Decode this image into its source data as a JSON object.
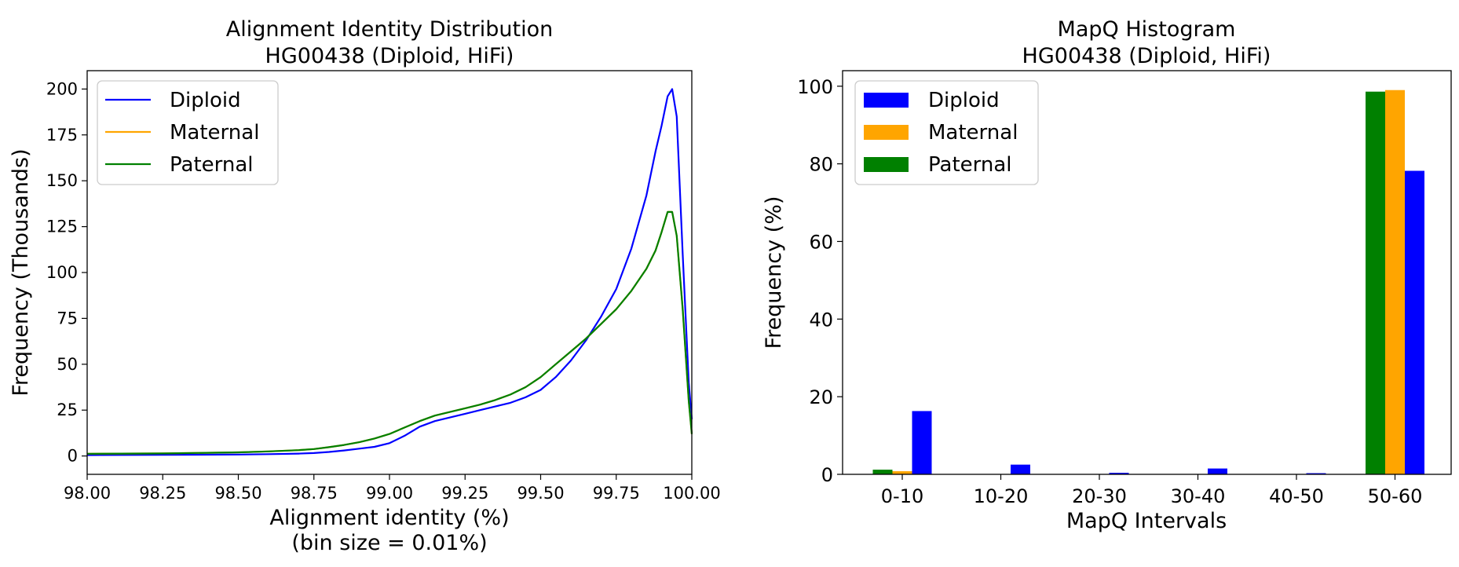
{
  "chart_data": [
    {
      "type": "line",
      "title": "Alignment Identity Distribution",
      "subtitle": "HG00438 (Diploid, HiFi)",
      "xlabel": "Alignment identity (%)",
      "xlabel_note": "(bin size = 0.01%)",
      "ylabel": "Frequency (Thousands)",
      "xlim": [
        98.0,
        100.0
      ],
      "ylim": [
        -10,
        210
      ],
      "xticks": [
        "98.00",
        "98.25",
        "98.50",
        "98.75",
        "99.00",
        "99.25",
        "99.50",
        "99.75",
        "100.00"
      ],
      "yticks": [
        "0",
        "25",
        "50",
        "75",
        "100",
        "125",
        "150",
        "175",
        "200"
      ],
      "grid": false,
      "legend_position": "top-left",
      "series": [
        {
          "name": "Diploid",
          "color": "#0000ff",
          "points": [
            [
              98.0,
              0.5
            ],
            [
              98.25,
              0.6
            ],
            [
              98.5,
              0.8
            ],
            [
              98.6,
              1.0
            ],
            [
              98.7,
              1.3
            ],
            [
              98.75,
              1.6
            ],
            [
              98.8,
              2.2
            ],
            [
              98.85,
              3.0
            ],
            [
              98.9,
              4.0
            ],
            [
              98.95,
              5.0
            ],
            [
              99.0,
              7.0
            ],
            [
              99.05,
              11.0
            ],
            [
              99.1,
              16.0
            ],
            [
              99.15,
              19.0
            ],
            [
              99.2,
              21.0
            ],
            [
              99.25,
              23.0
            ],
            [
              99.3,
              25.0
            ],
            [
              99.35,
              27.0
            ],
            [
              99.4,
              29.0
            ],
            [
              99.45,
              32.0
            ],
            [
              99.5,
              36.0
            ],
            [
              99.55,
              43.0
            ],
            [
              99.6,
              52.0
            ],
            [
              99.65,
              63.0
            ],
            [
              99.7,
              76.0
            ],
            [
              99.75,
              91.0
            ],
            [
              99.8,
              113.0
            ],
            [
              99.85,
              142.0
            ],
            [
              99.88,
              166.0
            ],
            [
              99.9,
              180.0
            ],
            [
              99.92,
              196.0
            ],
            [
              99.935,
              200.0
            ],
            [
              99.95,
              185.0
            ],
            [
              99.97,
              110.0
            ],
            [
              99.99,
              40.0
            ],
            [
              100.0,
              20.0
            ]
          ]
        },
        {
          "name": "Maternal",
          "color": "#ffa500",
          "points": [
            [
              98.0,
              1.2
            ],
            [
              98.25,
              1.4
            ],
            [
              98.5,
              2.0
            ],
            [
              98.6,
              2.5
            ],
            [
              98.7,
              3.2
            ],
            [
              98.75,
              3.8
            ],
            [
              98.8,
              4.8
            ],
            [
              98.85,
              6.0
            ],
            [
              98.9,
              7.5
            ],
            [
              98.95,
              9.5
            ],
            [
              99.0,
              12.0
            ],
            [
              99.05,
              15.5
            ],
            [
              99.1,
              19.0
            ],
            [
              99.15,
              22.0
            ],
            [
              99.2,
              24.0
            ],
            [
              99.25,
              26.0
            ],
            [
              99.3,
              28.0
            ],
            [
              99.35,
              30.5
            ],
            [
              99.4,
              33.5
            ],
            [
              99.45,
              37.5
            ],
            [
              99.5,
              43.0
            ],
            [
              99.55,
              50.0
            ],
            [
              99.6,
              57.0
            ],
            [
              99.65,
              64.0
            ],
            [
              99.7,
              72.0
            ],
            [
              99.75,
              80.0
            ],
            [
              99.8,
              90.0
            ],
            [
              99.85,
              102.0
            ],
            [
              99.88,
              112.0
            ],
            [
              99.9,
              122.0
            ],
            [
              99.92,
              133.0
            ],
            [
              99.935,
              133.0
            ],
            [
              99.95,
              120.0
            ],
            [
              99.97,
              80.0
            ],
            [
              99.99,
              30.0
            ],
            [
              100.0,
              12.0
            ]
          ]
        },
        {
          "name": "Paternal",
          "color": "#008000",
          "points": [
            [
              98.0,
              1.2
            ],
            [
              98.25,
              1.4
            ],
            [
              98.5,
              2.0
            ],
            [
              98.6,
              2.5
            ],
            [
              98.7,
              3.2
            ],
            [
              98.75,
              3.8
            ],
            [
              98.8,
              4.8
            ],
            [
              98.85,
              6.0
            ],
            [
              98.9,
              7.5
            ],
            [
              98.95,
              9.5
            ],
            [
              99.0,
              12.0
            ],
            [
              99.05,
              15.5
            ],
            [
              99.1,
              19.0
            ],
            [
              99.15,
              22.0
            ],
            [
              99.2,
              24.0
            ],
            [
              99.25,
              26.0
            ],
            [
              99.3,
              28.0
            ],
            [
              99.35,
              30.5
            ],
            [
              99.4,
              33.5
            ],
            [
              99.45,
              37.5
            ],
            [
              99.5,
              43.0
            ],
            [
              99.55,
              50.0
            ],
            [
              99.6,
              57.0
            ],
            [
              99.65,
              64.0
            ],
            [
              99.7,
              72.0
            ],
            [
              99.75,
              80.0
            ],
            [
              99.8,
              90.0
            ],
            [
              99.85,
              102.0
            ],
            [
              99.88,
              112.0
            ],
            [
              99.9,
              122.0
            ],
            [
              99.92,
              133.0
            ],
            [
              99.935,
              133.0
            ],
            [
              99.95,
              120.0
            ],
            [
              99.97,
              80.0
            ],
            [
              99.99,
              30.0
            ],
            [
              100.0,
              12.0
            ]
          ]
        }
      ]
    },
    {
      "type": "bar",
      "title": "MapQ Histogram",
      "subtitle": "HG00438 (Diploid, HiFi)",
      "xlabel": "MapQ Intervals",
      "ylabel": "Frequency (%)",
      "ylim": [
        0,
        104
      ],
      "yticks": [
        "0",
        "20",
        "40",
        "60",
        "80",
        "100"
      ],
      "categories": [
        "0-10",
        "10-20",
        "20-30",
        "30-40",
        "40-50",
        "50-60"
      ],
      "grid": false,
      "legend_position": "top-left",
      "series": [
        {
          "name": "Paternal",
          "color": "#008000",
          "values": [
            1.2,
            0.0,
            0.0,
            0.0,
            0.0,
            98.6
          ]
        },
        {
          "name": "Maternal",
          "color": "#ffa500",
          "values": [
            0.8,
            0.0,
            0.0,
            0.0,
            0.0,
            99.0
          ]
        },
        {
          "name": "Diploid",
          "color": "#0000ff",
          "values": [
            16.3,
            2.5,
            0.4,
            1.5,
            0.3,
            78.2
          ]
        }
      ],
      "legend_order": [
        "Diploid",
        "Maternal",
        "Paternal"
      ]
    }
  ]
}
